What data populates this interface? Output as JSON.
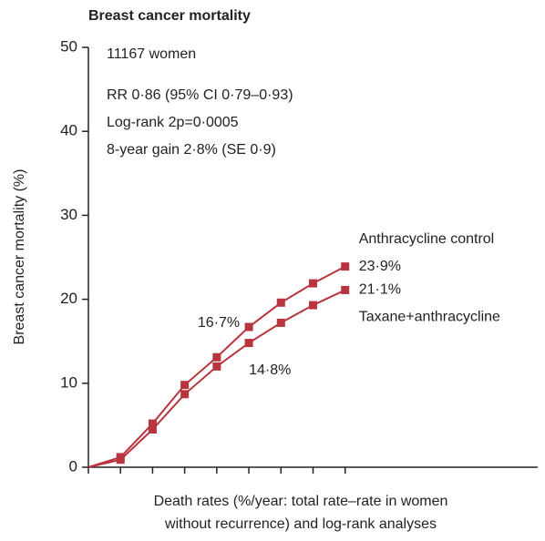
{
  "chart_data": {
    "type": "line",
    "title": "Breast cancer mortality",
    "ylabel": "Breast cancer mortality (%)",
    "xlabel": [
      "Death rates (%/year: total rate–rate in women",
      "without recurrence) and log-rank analyses"
    ],
    "annotations": [
      "11167 women",
      "RR 0·86 (95% CI 0·79–0·93)",
      "Log-rank 2p=0·0005",
      "8-year gain 2·8% (SE 0·9)"
    ],
    "x": [
      0,
      1,
      2,
      3,
      4,
      5,
      6,
      7,
      8
    ],
    "series": [
      {
        "name": "Anthracycline control",
        "color": "#b8343e",
        "values": [
          0,
          1.2,
          5.2,
          9.8,
          13.1,
          16.7,
          19.6,
          21.9,
          23.9
        ],
        "value_labels": [
          null,
          null,
          null,
          null,
          null,
          "16·7%",
          null,
          null,
          "23·9%"
        ]
      },
      {
        "name": "Taxane+anthracycline",
        "color": "#b8343e",
        "values": [
          0,
          0.9,
          4.5,
          8.7,
          12.0,
          14.8,
          17.2,
          19.3,
          21.1
        ],
        "value_labels": [
          null,
          null,
          null,
          null,
          null,
          "14·8%",
          null,
          null,
          "21·1%"
        ]
      }
    ],
    "xlim": [
      0,
      14
    ],
    "xticks": [
      0,
      1,
      2,
      3,
      4,
      5,
      6,
      7,
      8
    ],
    "ylim": [
      0,
      50
    ],
    "yticks": [
      0,
      10,
      20,
      30,
      40,
      50
    ]
  }
}
